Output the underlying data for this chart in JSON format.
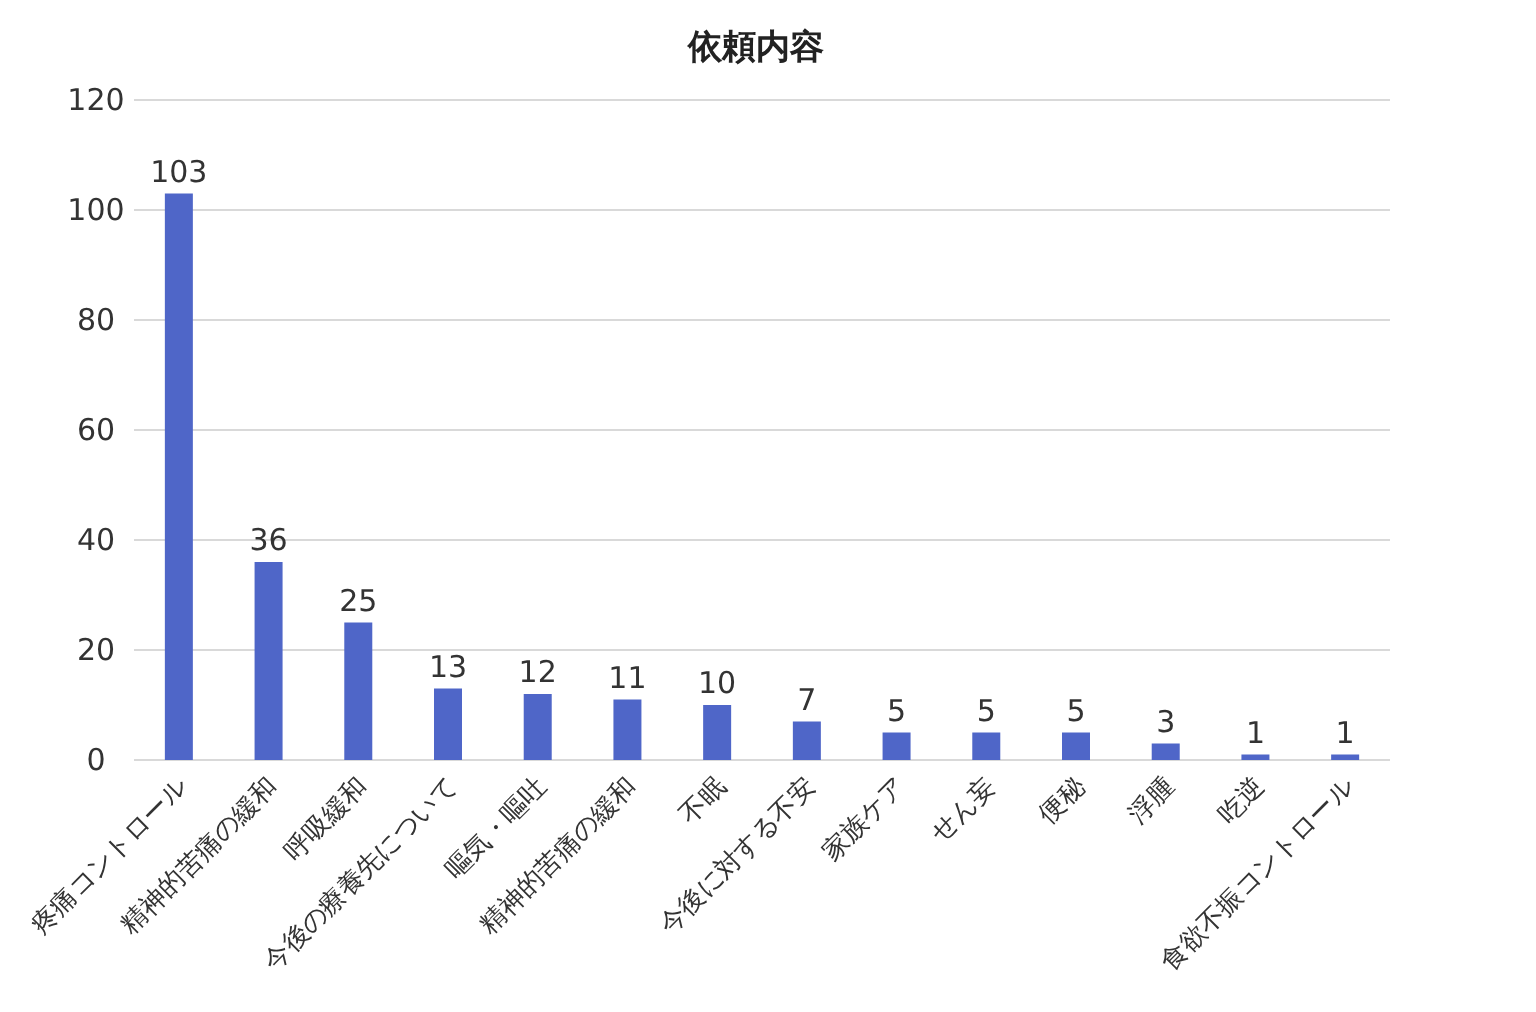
{
  "chart_data": {
    "type": "bar",
    "title": "依頼内容",
    "categories": [
      "疼痛コントロール",
      "精神的苦痛の緩和",
      "呼吸緩和",
      "今後の療養先について",
      "嘔気・嘔吐",
      "精神的苦痛の緩和",
      "不眠",
      "今後に対する不安",
      "家族ケア",
      "せん妄",
      "便秘",
      "浮腫",
      "吃逆",
      "食欲不振コントロール"
    ],
    "values": [
      103,
      36,
      25,
      13,
      12,
      11,
      10,
      7,
      5,
      5,
      5,
      3,
      1,
      1
    ],
    "color": "#4f66c8",
    "ylim": [
      0,
      120
    ],
    "yticks": [
      0,
      20,
      40,
      60,
      80,
      100,
      120
    ],
    "grid": "y",
    "data_labels": true
  }
}
